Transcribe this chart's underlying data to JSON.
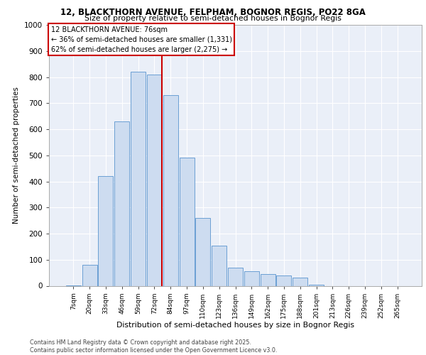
{
  "title_line1": "12, BLACKTHORN AVENUE, FELPHAM, BOGNOR REGIS, PO22 8GA",
  "title_line2": "Size of property relative to semi-detached houses in Bognor Regis",
  "xlabel": "Distribution of semi-detached houses by size in Bognor Regis",
  "ylabel": "Number of semi-detached properties",
  "categories": [
    "7sqm",
    "20sqm",
    "33sqm",
    "46sqm",
    "59sqm",
    "72sqm",
    "84sqm",
    "97sqm",
    "110sqm",
    "123sqm",
    "136sqm",
    "149sqm",
    "162sqm",
    "175sqm",
    "188sqm",
    "201sqm",
    "213sqm",
    "226sqm",
    "239sqm",
    "252sqm",
    "265sqm"
  ],
  "bar_values": [
    2,
    80,
    420,
    630,
    820,
    810,
    730,
    490,
    260,
    155,
    70,
    55,
    45,
    40,
    30,
    5,
    0,
    0,
    0,
    0,
    0
  ],
  "bar_color": "#cddcf0",
  "bar_edge_color": "#6b9fd4",
  "property_label": "12 BLACKTHORN AVENUE: 76sqm",
  "annotation_smaller": "← 36% of semi-detached houses are smaller (1,331)",
  "annotation_larger": "62% of semi-detached houses are larger (2,275) →",
  "vline_color": "#cc0000",
  "vline_x_index": 5.45,
  "annotation_box_color": "#cc0000",
  "ylim": [
    0,
    1000
  ],
  "yticks": [
    0,
    100,
    200,
    300,
    400,
    500,
    600,
    700,
    800,
    900,
    1000
  ],
  "background_color": "#eaeff8",
  "grid_color": "#ffffff",
  "footer_line1": "Contains HM Land Registry data © Crown copyright and database right 2025.",
  "footer_line2": "Contains public sector information licensed under the Open Government Licence v3.0."
}
